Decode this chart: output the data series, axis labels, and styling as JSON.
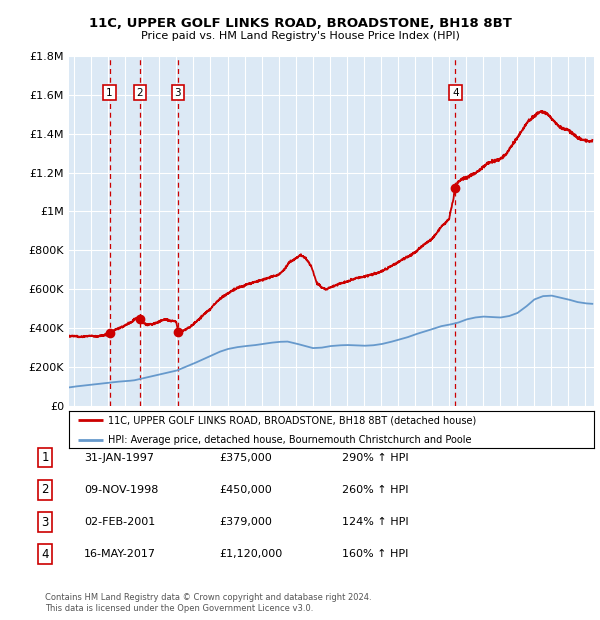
{
  "title1": "11C, UPPER GOLF LINKS ROAD, BROADSTONE, BH18 8BT",
  "title2": "Price paid vs. HM Land Registry's House Price Index (HPI)",
  "ylim": [
    0,
    1800000
  ],
  "xlim_start": 1994.7,
  "xlim_end": 2025.5,
  "yticks": [
    0,
    200000,
    400000,
    600000,
    800000,
    1000000,
    1200000,
    1400000,
    1600000,
    1800000
  ],
  "ytick_labels": [
    "£0",
    "£200K",
    "£400K",
    "£600K",
    "£800K",
    "£1M",
    "£1.2M",
    "£1.4M",
    "£1.6M",
    "£1.8M"
  ],
  "xticks": [
    1995,
    1996,
    1997,
    1998,
    1999,
    2000,
    2001,
    2002,
    2003,
    2004,
    2005,
    2006,
    2007,
    2008,
    2009,
    2010,
    2011,
    2012,
    2013,
    2014,
    2015,
    2016,
    2017,
    2018,
    2019,
    2020,
    2021,
    2022,
    2023,
    2024,
    2025
  ],
  "background_color": "#dce9f5",
  "grid_color": "#ffffff",
  "property_line_color": "#cc0000",
  "hpi_line_color": "#6699cc",
  "transaction_line_color": "#cc0000",
  "marker_color": "#cc0000",
  "transactions": [
    {
      "date_num": 1997.08,
      "price": 375000,
      "label": "1"
    },
    {
      "date_num": 1998.86,
      "price": 450000,
      "label": "2"
    },
    {
      "date_num": 2001.09,
      "price": 379000,
      "label": "3"
    },
    {
      "date_num": 2017.37,
      "price": 1120000,
      "label": "4"
    }
  ],
  "legend_property": "11C, UPPER GOLF LINKS ROAD, BROADSTONE, BH18 8BT (detached house)",
  "legend_hpi": "HPI: Average price, detached house, Bournemouth Christchurch and Poole",
  "footer": "Contains HM Land Registry data © Crown copyright and database right 2024.\nThis data is licensed under the Open Government Licence v3.0.",
  "table_rows": [
    {
      "num": "1",
      "date": "31-JAN-1997",
      "price": "£375,000",
      "hpi": "290% ↑ HPI"
    },
    {
      "num": "2",
      "date": "09-NOV-1998",
      "price": "£450,000",
      "hpi": "260% ↑ HPI"
    },
    {
      "num": "3",
      "date": "02-FEB-2001",
      "price": "£379,000",
      "hpi": "124% ↑ HPI"
    },
    {
      "num": "4",
      "date": "16-MAY-2017",
      "price": "£1,120,000",
      "hpi": "160% ↑ HPI"
    }
  ]
}
